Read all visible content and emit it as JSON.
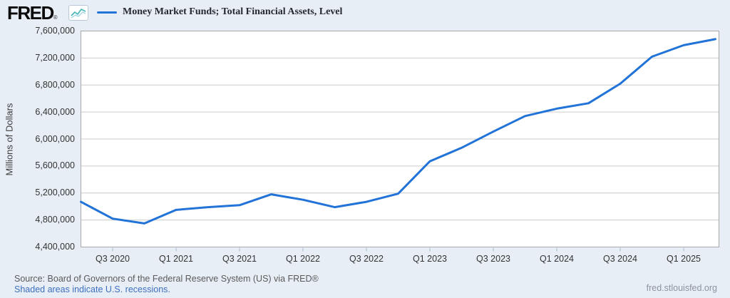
{
  "header": {
    "logo_text": "FRED",
    "logo_reg": "®",
    "legend": {
      "label": "Money Market Funds; Total Financial Assets, Level"
    }
  },
  "chart_data": {
    "type": "line",
    "title": "Money Market Funds; Total Financial Assets, Level",
    "xlabel": "",
    "ylabel": "Millions of Dollars",
    "x": [
      "Q2 2020",
      "Q3 2020",
      "Q4 2020",
      "Q1 2021",
      "Q2 2021",
      "Q3 2021",
      "Q4 2021",
      "Q1 2022",
      "Q2 2022",
      "Q3 2022",
      "Q4 2022",
      "Q1 2023",
      "Q2 2023",
      "Q3 2023",
      "Q4 2023",
      "Q1 2024",
      "Q2 2024",
      "Q3 2024",
      "Q4 2024",
      "Q1 2025",
      "Q2 2025"
    ],
    "values": [
      5070000,
      4820000,
      4750000,
      4950000,
      4990000,
      5020000,
      5180000,
      5100000,
      4990000,
      5070000,
      5190000,
      5670000,
      5870000,
      6110000,
      6340000,
      6450000,
      6530000,
      6820000,
      7220000,
      7390000,
      7480000
    ],
    "ylim": [
      4400000,
      7600000
    ],
    "y_ticks": [
      4400000,
      4800000,
      5200000,
      5600000,
      6000000,
      6400000,
      6800000,
      7200000,
      7600000
    ],
    "x_tick_indices": [
      1,
      3,
      5,
      7,
      9,
      11,
      13,
      15,
      17,
      19
    ],
    "x_tick_labels": [
      "Q3 2020",
      "Q1 2021",
      "Q3 2021",
      "Q1 2022",
      "Q3 2022",
      "Q1 2023",
      "Q3 2023",
      "Q1 2024",
      "Q3 2024",
      "Q1 2025"
    ],
    "grid": true,
    "legend_position": "top",
    "line_color": "#2273d8",
    "grid_color": "#cccccc",
    "border_color": "#a8a8a8",
    "tick_color": "#a9bacd",
    "plot_bg": "#ffffff",
    "page_bg": "#e8eef6"
  },
  "footer": {
    "source_line": "Source: Board of Governors of the Federal Reserve System (US) via FRED®",
    "recession_note": "Shaded areas indicate U.S. recessions.",
    "site": "fred.stlouisfed.org"
  }
}
